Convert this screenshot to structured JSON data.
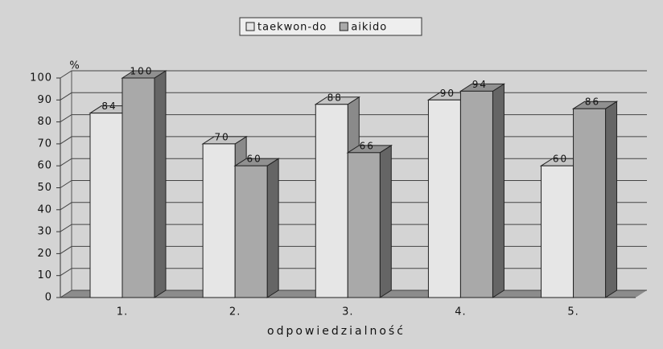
{
  "chart_data": {
    "type": "bar3d",
    "y_unit": "%",
    "xlabel": "odpowiedzialność",
    "categories": [
      "1.",
      "2.",
      "3.",
      "4.",
      "5."
    ],
    "series": [
      {
        "name": "taekwon-do",
        "color": "#e6e6e6",
        "values": [
          84,
          70,
          88,
          90,
          60
        ]
      },
      {
        "name": "aikido",
        "color": "#a9a9a9",
        "values": [
          100,
          60,
          66,
          94,
          86
        ]
      }
    ],
    "ylim": [
      0,
      100
    ],
    "yticks": [
      0,
      10,
      20,
      30,
      40,
      50,
      60,
      70,
      80,
      90,
      100
    ],
    "grid": true,
    "legend": "top"
  }
}
